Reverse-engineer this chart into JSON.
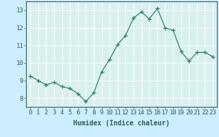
{
  "x": [
    0,
    1,
    2,
    3,
    4,
    5,
    6,
    7,
    8,
    9,
    10,
    11,
    12,
    13,
    14,
    15,
    16,
    17,
    18,
    19,
    20,
    21,
    22,
    23
  ],
  "y": [
    9.25,
    9.0,
    8.75,
    8.9,
    8.65,
    8.55,
    8.25,
    7.8,
    8.3,
    9.5,
    10.2,
    11.05,
    11.55,
    12.55,
    12.9,
    12.5,
    13.1,
    12.0,
    11.85,
    10.65,
    10.1,
    10.6,
    10.6,
    10.35
  ],
  "line_color": "#2e7d6e",
  "marker": "+",
  "marker_size": 4,
  "bg_color": "#cceeff",
  "grid_color": "#ffffff",
  "grid_bg": "#d9f0f0",
  "tick_color": "#2e5d5a",
  "xlabel": "Humidex (Indice chaleur)",
  "xlim": [
    -0.5,
    23.5
  ],
  "ylim": [
    7.5,
    13.5
  ],
  "yticks": [
    8,
    9,
    10,
    11,
    12,
    13
  ],
  "xticks": [
    0,
    1,
    2,
    3,
    4,
    5,
    6,
    7,
    8,
    9,
    10,
    11,
    12,
    13,
    14,
    15,
    16,
    17,
    18,
    19,
    20,
    21,
    22,
    23
  ],
  "label_fontsize": 7,
  "tick_fontsize": 6.5
}
